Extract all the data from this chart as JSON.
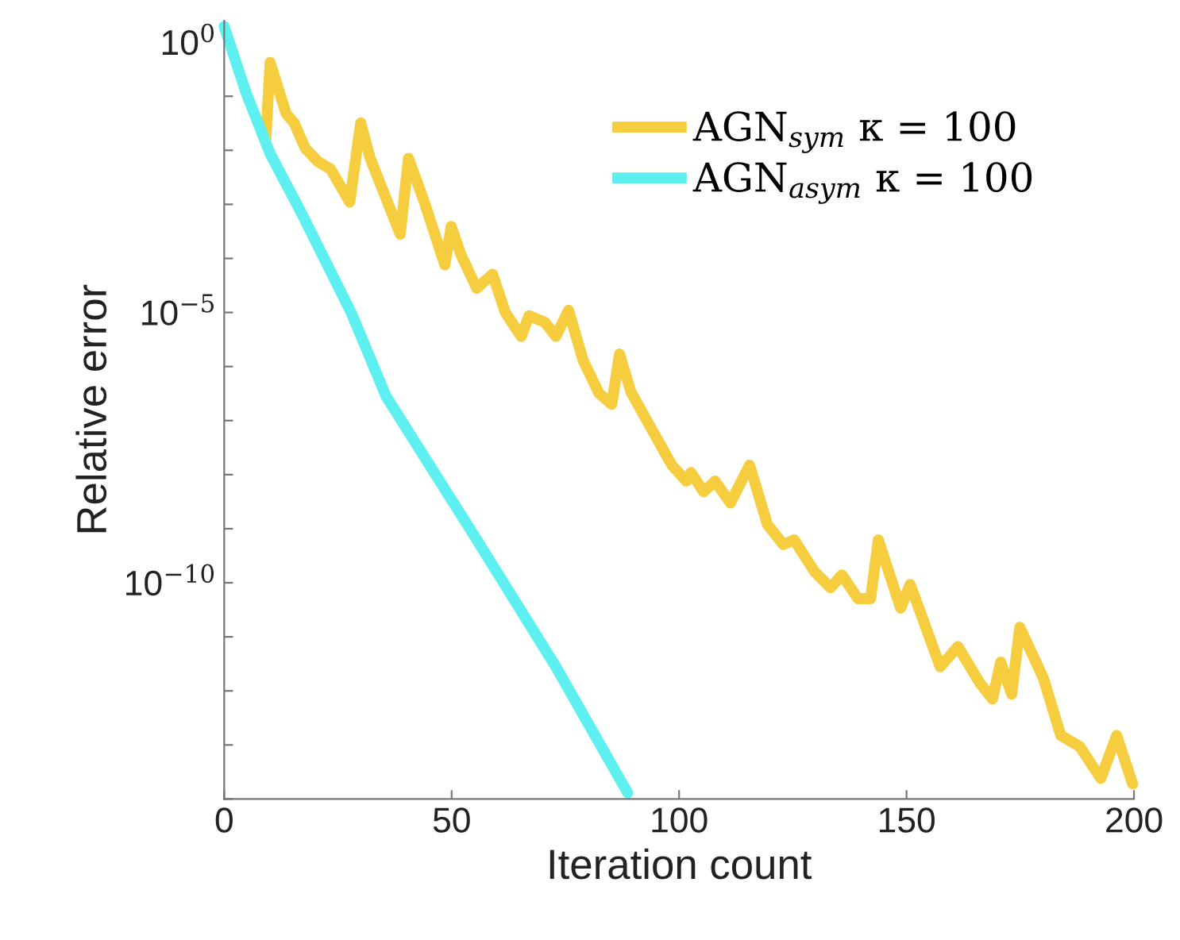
{
  "chart_data": {
    "type": "line",
    "xlabel": "Iteration count",
    "ylabel": "Relative error",
    "log": "y",
    "xlim": [
      0,
      200
    ],
    "xticks": [
      0,
      50,
      100,
      150,
      200
    ],
    "ylim": [
      1e-14,
      2.5
    ],
    "yticks": [
      {
        "value": 1,
        "label": "10$^{0}$"
      },
      {
        "value": 0.1,
        "label": null
      },
      {
        "value": 0.01,
        "label": null
      },
      {
        "value": 0.001,
        "label": null
      },
      {
        "value": 0.0001,
        "label": null
      },
      {
        "value": 1e-05,
        "label": "10$^{−5}$"
      },
      {
        "value": 1e-06,
        "label": null
      },
      {
        "value": 1e-07,
        "label": null
      },
      {
        "value": 1e-08,
        "label": null
      },
      {
        "value": 1e-09,
        "label": null
      },
      {
        "value": 1e-10,
        "label": "10$^{−10}$"
      },
      {
        "value": 1e-11,
        "label": null
      },
      {
        "value": 1e-12,
        "label": null
      },
      {
        "value": 1e-13,
        "label": null
      },
      {
        "value": 1e-14,
        "label": null
      }
    ],
    "grid": false,
    "legend": "top right",
    "marker": "none",
    "line_style": "solid",
    "series": [
      {
        "name": "AGN$_{sym}$ κ = 100",
        "color": "#f7cd40",
        "x": [
          9.1,
          10.1,
          13.6,
          15.4,
          17.8,
          20.6,
          23.4,
          27.6,
          30.0,
          32.1,
          38.7,
          40.5,
          44.0,
          48.5,
          49.9,
          52.0,
          55.5,
          59.0,
          61.8,
          65.3,
          67.0,
          70.5,
          72.9,
          75.7,
          78.9,
          82.4,
          85.2,
          86.9,
          89.4,
          93.9,
          98.4,
          101.6,
          102.6,
          105.4,
          107.9,
          111.3,
          115.5,
          119.4,
          122.9,
          125.3,
          129.8,
          133.3,
          135.8,
          139.3,
          142.1,
          143.8,
          148.7,
          150.8,
          157.4,
          161.3,
          166.1,
          168.9,
          170.7,
          173.1,
          174.9,
          180.1,
          183.9,
          188.1,
          192.7,
          196.2,
          199.7
        ],
        "values": [
          0.014,
          0.42,
          0.048,
          0.032,
          0.011,
          0.0062,
          0.0045,
          0.0011,
          0.032,
          0.0071,
          0.00028,
          0.0071,
          0.0011,
          7.6e-05,
          0.00039,
          0.00012,
          2.8e-05,
          5.1e-05,
          1e-05,
          3.6e-06,
          8.7e-06,
          6.6e-06,
          3.6e-06,
          1.1e-05,
          1.3e-06,
          3.2e-07,
          2e-07,
          1.7e-06,
          3.4e-07,
          7.1e-08,
          1.5e-08,
          7.6e-09,
          1.1e-08,
          4.8e-09,
          7.6e-09,
          3e-09,
          1.5e-08,
          1.2e-09,
          5.1e-10,
          6.2e-10,
          1.6e-10,
          8.1e-11,
          1.4e-10,
          5.1e-11,
          5.1e-11,
          6.2e-10,
          3.4e-11,
          9.3e-11,
          2.8e-12,
          6.6e-12,
          1.4e-12,
          7.1e-13,
          3.4e-12,
          8.7e-13,
          1.5e-11,
          1.7e-12,
          1.5e-13,
          9.3e-14,
          2.4e-14,
          1.5e-13,
          1.9e-14
        ]
      },
      {
        "name": "AGN$_{asym}$ κ = 100",
        "color": "#5ef0f0",
        "x": [
          0,
          4.9,
          10.1,
          17.1,
          27.9,
          35.6,
          55.5,
          72.9,
          88.7
        ],
        "values": [
          1.95,
          0.11,
          0.0087,
          0.00066,
          1e-05,
          2.8e-07,
          6.3e-10,
          2.8e-12,
          1.3e-14
        ]
      }
    ]
  }
}
